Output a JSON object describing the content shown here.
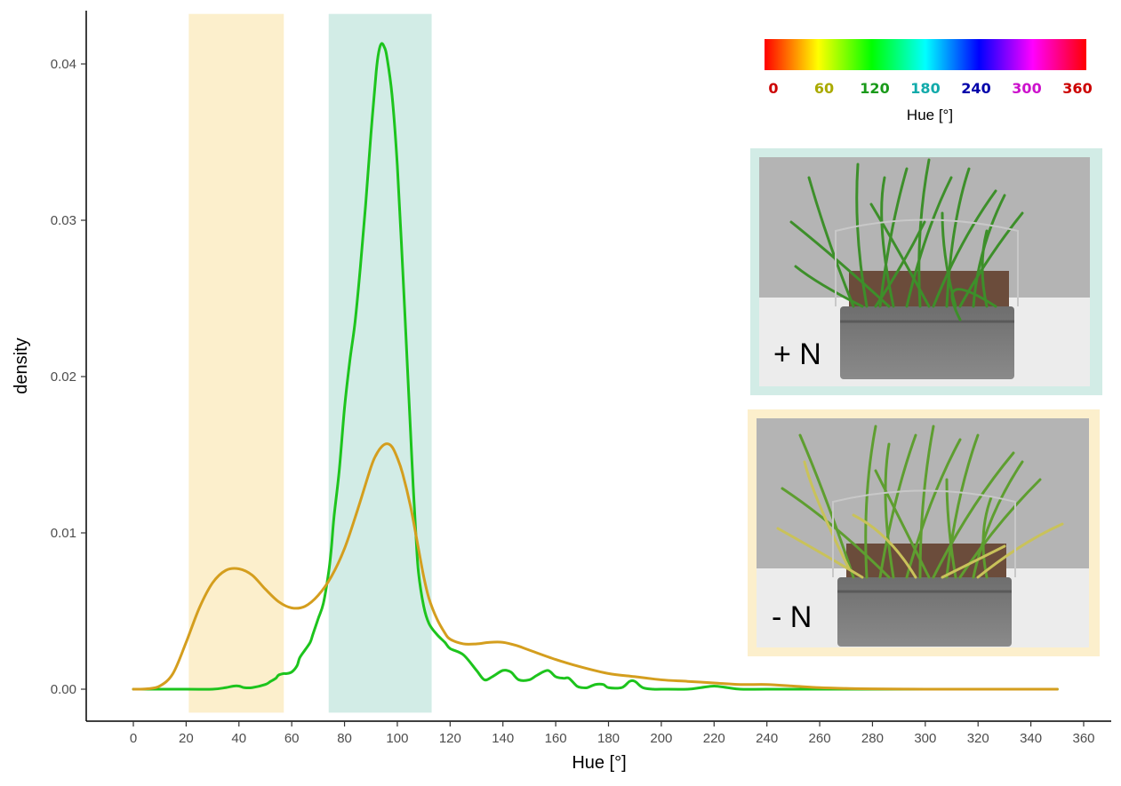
{
  "chart_data": {
    "type": "line",
    "title": "",
    "xlabel": "Hue [°]",
    "ylabel": "density",
    "xlim": [
      -8,
      367
    ],
    "ylim": [
      -0.0015,
      0.0432
    ],
    "x_ticks": [
      0,
      20,
      40,
      60,
      80,
      100,
      120,
      140,
      160,
      180,
      200,
      220,
      240,
      260,
      280,
      300,
      320,
      340,
      360
    ],
    "y_ticks": [
      0.0,
      0.01,
      0.02,
      0.03,
      0.04
    ],
    "y_tick_labels": [
      "0.00",
      "0.01",
      "0.02",
      "0.03",
      "0.04"
    ],
    "grid": false,
    "highlight_bands": [
      {
        "x_range": [
          21,
          57
        ],
        "color": "#fcefcc"
      },
      {
        "x_range": [
          74,
          113
        ],
        "color": "#d2ece6"
      }
    ],
    "series": [
      {
        "color": "#1dc41d",
        "x": [
          0,
          20,
          30,
          35,
          38,
          40,
          42,
          45,
          50,
          52,
          54,
          55,
          57,
          58,
          60,
          62,
          63,
          65,
          67,
          68,
          70,
          72,
          74,
          75,
          76,
          78,
          80,
          82,
          84,
          86,
          88,
          90,
          92,
          93,
          94,
          95,
          96,
          98,
          100,
          102,
          104,
          105,
          106,
          107,
          108,
          110,
          112,
          115,
          118,
          120,
          125,
          130,
          133,
          136,
          140,
          143,
          146,
          150,
          153,
          157,
          160,
          163,
          165,
          168,
          170,
          172,
          175,
          178,
          180,
          185,
          188,
          190,
          193,
          197,
          200,
          210,
          215,
          220,
          225,
          230,
          240,
          260,
          280,
          300,
          320,
          350
        ],
        "y": [
          0,
          0,
          0,
          0.0001,
          0.0002,
          0.0002,
          0.0001,
          0.0001,
          0.0003,
          0.0005,
          0.0007,
          0.0009,
          0.001,
          0.001,
          0.0011,
          0.0015,
          0.002,
          0.0025,
          0.003,
          0.0035,
          0.0045,
          0.0055,
          0.0075,
          0.009,
          0.011,
          0.014,
          0.018,
          0.021,
          0.0235,
          0.027,
          0.031,
          0.0355,
          0.0395,
          0.0408,
          0.0413,
          0.0411,
          0.0405,
          0.038,
          0.0335,
          0.027,
          0.02,
          0.0165,
          0.013,
          0.01,
          0.0075,
          0.0053,
          0.0042,
          0.0035,
          0.003,
          0.0026,
          0.0022,
          0.0012,
          0.0006,
          0.0008,
          0.0012,
          0.0011,
          0.0006,
          0.0006,
          0.0009,
          0.0012,
          0.0008,
          0.0007,
          0.0007,
          0.0002,
          0.0001,
          0.0001,
          0.0003,
          0.0003,
          0.0001,
          0.0001,
          0.0005,
          0.0005,
          0.0001,
          0,
          0,
          0,
          0.0001,
          0.0002,
          0.0001,
          0,
          0,
          0,
          0,
          0,
          0,
          0
        ]
      },
      {
        "color": "#d49e1e",
        "x": [
          0,
          5,
          10,
          15,
          20,
          25,
          30,
          35,
          40,
          45,
          50,
          55,
          60,
          65,
          70,
          75,
          80,
          85,
          90,
          92,
          94,
          96,
          98,
          100,
          102,
          105,
          108,
          110,
          112,
          115,
          118,
          120,
          125,
          130,
          135,
          140,
          145,
          150,
          160,
          170,
          180,
          190,
          200,
          210,
          220,
          230,
          240,
          250,
          260,
          270,
          280,
          300,
          320,
          350
        ],
        "y": [
          0,
          2e-05,
          0.0002,
          0.001,
          0.003,
          0.0052,
          0.0068,
          0.0076,
          0.0077,
          0.0073,
          0.0064,
          0.0056,
          0.0052,
          0.0053,
          0.006,
          0.0072,
          0.009,
          0.0115,
          0.0142,
          0.015,
          0.0155,
          0.0157,
          0.0155,
          0.0148,
          0.0138,
          0.0117,
          0.009,
          0.0072,
          0.0058,
          0.0045,
          0.0036,
          0.0032,
          0.0029,
          0.0029,
          0.003,
          0.003,
          0.0028,
          0.0025,
          0.0019,
          0.0014,
          0.001,
          0.0008,
          0.0006,
          0.0005,
          0.0004,
          0.0003,
          0.0003,
          0.0002,
          0.0001,
          5e-05,
          2e-05,
          0,
          0,
          0
        ]
      }
    ],
    "colorbar": {
      "title": "Hue [°]",
      "ticks": [
        {
          "label": "0",
          "color": "#cc0000"
        },
        {
          "label": "60",
          "color": "#aaaa00"
        },
        {
          "label": "120",
          "color": "#1a9a1a"
        },
        {
          "label": "180",
          "color": "#11aaaa"
        },
        {
          "label": "240",
          "color": "#0000aa"
        },
        {
          "label": "300",
          "color": "#cc11cc"
        },
        {
          "label": "360",
          "color": "#cc0000"
        }
      ]
    },
    "insets": [
      {
        "label": "+ N",
        "frame_color": "#d2ece6"
      },
      {
        "label": "- N",
        "frame_color": "#fcefcc"
      }
    ]
  }
}
